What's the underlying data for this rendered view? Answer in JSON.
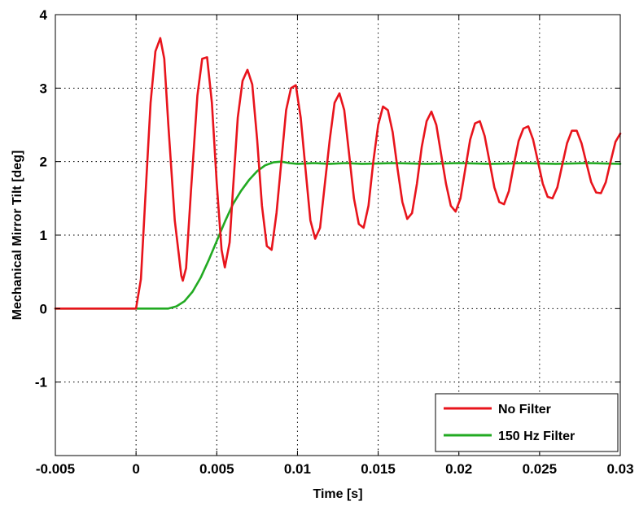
{
  "chart_data": {
    "type": "line",
    "title": "",
    "xlabel": "Time [s]",
    "ylabel": "Mechanical Mirror Tilt [deg]",
    "xlim": [
      -0.005,
      0.03
    ],
    "ylim": [
      -2,
      4
    ],
    "grid": true,
    "legend_position": "bottom-right",
    "x_ticks": [
      -0.005,
      0,
      0.005,
      0.01,
      0.015,
      0.02,
      0.025,
      0.03
    ],
    "x_tick_labels": [
      "-0.005",
      "0",
      "0.005",
      "0.01",
      "0.015",
      "0.02",
      "0.025",
      "0.03"
    ],
    "y_ticks": [
      -1,
      0,
      1,
      2,
      3,
      4
    ],
    "y_tick_labels": [
      "-1",
      "0",
      "1",
      "2",
      "3",
      "4"
    ],
    "series": [
      {
        "name": "No Filter",
        "color": "#e8141c",
        "x": [
          -0.005,
          0.0,
          0.0003,
          0.0006,
          0.0009,
          0.0012,
          0.0015,
          0.00175,
          0.002,
          0.0024,
          0.0028,
          0.0029,
          0.0031,
          0.0034,
          0.0038,
          0.0041,
          0.0044,
          0.0047,
          0.005,
          0.0053,
          0.0055,
          0.0058,
          0.006,
          0.0063,
          0.0066,
          0.0069,
          0.0072,
          0.0075,
          0.0078,
          0.0081,
          0.0084,
          0.0087,
          0.009,
          0.0093,
          0.0096,
          0.0099,
          0.0102,
          0.0105,
          0.0108,
          0.0111,
          0.0114,
          0.0117,
          0.012,
          0.0123,
          0.0126,
          0.0129,
          0.0132,
          0.0135,
          0.0138,
          0.0141,
          0.0144,
          0.0147,
          0.015,
          0.0153,
          0.0156,
          0.0159,
          0.0162,
          0.0165,
          0.0168,
          0.0171,
          0.0174,
          0.0177,
          0.018,
          0.0183,
          0.0186,
          0.0189,
          0.0192,
          0.0195,
          0.0198,
          0.0201,
          0.0204,
          0.0207,
          0.021,
          0.0213,
          0.0216,
          0.0219,
          0.0222,
          0.0225,
          0.0228,
          0.0231,
          0.0234,
          0.0237,
          0.024,
          0.0243,
          0.0246,
          0.0249,
          0.0252,
          0.0255,
          0.0258,
          0.0261,
          0.0264,
          0.0267,
          0.027,
          0.0273,
          0.0276,
          0.0279,
          0.0282,
          0.0285,
          0.0288,
          0.0291,
          0.0294,
          0.0297,
          0.03
        ],
        "y": [
          0.0,
          0.0,
          0.4,
          1.6,
          2.8,
          3.5,
          3.68,
          3.4,
          2.5,
          1.2,
          0.45,
          0.38,
          0.55,
          1.6,
          2.9,
          3.4,
          3.42,
          2.8,
          1.7,
          0.8,
          0.56,
          0.9,
          1.6,
          2.6,
          3.1,
          3.25,
          3.05,
          2.3,
          1.4,
          0.85,
          0.8,
          1.3,
          2.0,
          2.7,
          3.0,
          3.04,
          2.6,
          1.9,
          1.2,
          0.95,
          1.1,
          1.7,
          2.3,
          2.8,
          2.93,
          2.7,
          2.1,
          1.5,
          1.15,
          1.1,
          1.4,
          2.0,
          2.5,
          2.75,
          2.7,
          2.4,
          1.9,
          1.45,
          1.22,
          1.3,
          1.7,
          2.2,
          2.55,
          2.68,
          2.5,
          2.1,
          1.7,
          1.4,
          1.32,
          1.5,
          1.9,
          2.3,
          2.52,
          2.55,
          2.35,
          2.0,
          1.65,
          1.45,
          1.42,
          1.6,
          1.95,
          2.28,
          2.45,
          2.48,
          2.3,
          2.0,
          1.7,
          1.52,
          1.5,
          1.65,
          1.95,
          2.25,
          2.42,
          2.42,
          2.25,
          1.98,
          1.72,
          1.58,
          1.57,
          1.72,
          2.0,
          2.27,
          2.38
        ]
      },
      {
        "name": "150 Hz Filter",
        "color": "#22aa22",
        "x": [
          -0.005,
          0.0,
          0.002,
          0.0025,
          0.003,
          0.0035,
          0.004,
          0.0045,
          0.005,
          0.0055,
          0.006,
          0.0065,
          0.007,
          0.0075,
          0.008,
          0.0085,
          0.009,
          0.0095,
          0.01,
          0.011,
          0.012,
          0.013,
          0.014,
          0.016,
          0.018,
          0.02,
          0.022,
          0.024,
          0.026,
          0.028,
          0.03
        ],
        "y": [
          0.0,
          0.0,
          0.0,
          0.03,
          0.1,
          0.23,
          0.42,
          0.66,
          0.92,
          1.18,
          1.42,
          1.6,
          1.75,
          1.87,
          1.95,
          1.99,
          2.0,
          1.98,
          1.97,
          1.98,
          1.97,
          1.98,
          1.97,
          1.98,
          1.97,
          1.98,
          1.97,
          1.98,
          1.97,
          1.98,
          1.97
        ]
      }
    ]
  }
}
